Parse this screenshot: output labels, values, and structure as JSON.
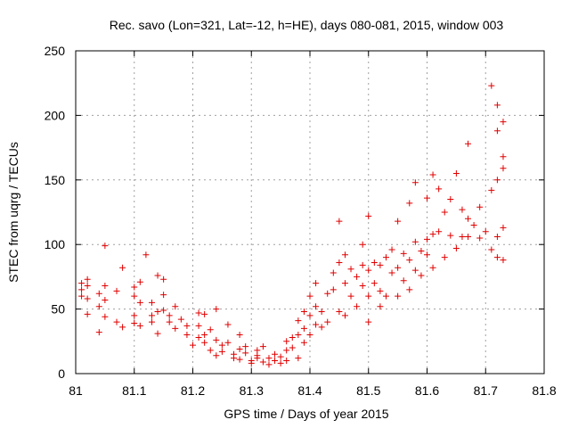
{
  "chart_data": {
    "type": "scatter",
    "title": "Rec. savo (Lon=321, Lat=-12, h=HE), days 080-081, 2015, window 003",
    "xlabel": "GPS time / Days of year 2015",
    "ylabel": "STEC from uqrg / TECUs",
    "xlim": [
      81,
      81.8
    ],
    "ylim": [
      0,
      250
    ],
    "xticks": [
      81,
      81.1,
      81.2,
      81.3,
      81.4,
      81.5,
      81.6,
      81.7,
      81.8
    ],
    "yticks": [
      0,
      50,
      100,
      150,
      200,
      250
    ],
    "xtick_labels": [
      "81",
      "81.1",
      "81.2",
      "81.3",
      "81.4",
      "81.5",
      "81.6",
      "81.7",
      "81.8"
    ],
    "ytick_labels": [
      "0",
      "50",
      "100",
      "150",
      "200",
      "250"
    ],
    "grid": true,
    "marker": "+",
    "color": "#e00000",
    "series": [
      {
        "name": "STEC",
        "points": [
          [
            81.01,
            70
          ],
          [
            81.01,
            65
          ],
          [
            81.01,
            60
          ],
          [
            81.02,
            73
          ],
          [
            81.02,
            68
          ],
          [
            81.02,
            58
          ],
          [
            81.02,
            46
          ],
          [
            81.04,
            62
          ],
          [
            81.04,
            52
          ],
          [
            81.04,
            32
          ],
          [
            81.05,
            99
          ],
          [
            81.05,
            68
          ],
          [
            81.05,
            57
          ],
          [
            81.05,
            44
          ],
          [
            81.07,
            64
          ],
          [
            81.07,
            40
          ],
          [
            81.08,
            82
          ],
          [
            81.08,
            36
          ],
          [
            81.1,
            67
          ],
          [
            81.1,
            60
          ],
          [
            81.1,
            45
          ],
          [
            81.1,
            39
          ],
          [
            81.11,
            71
          ],
          [
            81.11,
            55
          ],
          [
            81.11,
            37
          ],
          [
            81.12,
            92
          ],
          [
            81.13,
            55
          ],
          [
            81.13,
            45
          ],
          [
            81.13,
            40
          ],
          [
            81.14,
            76
          ],
          [
            81.14,
            48
          ],
          [
            81.14,
            31
          ],
          [
            81.15,
            73
          ],
          [
            81.15,
            61
          ],
          [
            81.15,
            49
          ],
          [
            81.16,
            45
          ],
          [
            81.16,
            40
          ],
          [
            81.17,
            52
          ],
          [
            81.17,
            35
          ],
          [
            81.18,
            42
          ],
          [
            81.19,
            30
          ],
          [
            81.19,
            37
          ],
          [
            81.2,
            22
          ],
          [
            81.21,
            47
          ],
          [
            81.21,
            37
          ],
          [
            81.21,
            28
          ],
          [
            81.22,
            46
          ],
          [
            81.22,
            30
          ],
          [
            81.22,
            24
          ],
          [
            81.23,
            34
          ],
          [
            81.23,
            18
          ],
          [
            81.24,
            50
          ],
          [
            81.24,
            26
          ],
          [
            81.24,
            14
          ],
          [
            81.25,
            22
          ],
          [
            81.25,
            17
          ],
          [
            81.26,
            24
          ],
          [
            81.26,
            38
          ],
          [
            81.27,
            15
          ],
          [
            81.27,
            12
          ],
          [
            81.28,
            30
          ],
          [
            81.28,
            19
          ],
          [
            81.28,
            11
          ],
          [
            81.29,
            21
          ],
          [
            81.29,
            16
          ],
          [
            81.3,
            10
          ],
          [
            81.3,
            8
          ],
          [
            81.31,
            18
          ],
          [
            81.31,
            14
          ],
          [
            81.31,
            12
          ],
          [
            81.32,
            21
          ],
          [
            81.32,
            9
          ],
          [
            81.33,
            12
          ],
          [
            81.33,
            7
          ],
          [
            81.34,
            15
          ],
          [
            81.34,
            10
          ],
          [
            81.35,
            13
          ],
          [
            81.35,
            8
          ],
          [
            81.36,
            25
          ],
          [
            81.36,
            18
          ],
          [
            81.36,
            10
          ],
          [
            81.37,
            28
          ],
          [
            81.37,
            20
          ],
          [
            81.38,
            30
          ],
          [
            81.38,
            41
          ],
          [
            81.38,
            12
          ],
          [
            81.39,
            48
          ],
          [
            81.39,
            35
          ],
          [
            81.39,
            24
          ],
          [
            81.4,
            60
          ],
          [
            81.4,
            45
          ],
          [
            81.4,
            30
          ],
          [
            81.41,
            70
          ],
          [
            81.41,
            52
          ],
          [
            81.41,
            38
          ],
          [
            81.42,
            48
          ],
          [
            81.42,
            36
          ],
          [
            81.43,
            62
          ],
          [
            81.43,
            40
          ],
          [
            81.44,
            78
          ],
          [
            81.44,
            65
          ],
          [
            81.45,
            118
          ],
          [
            81.45,
            86
          ],
          [
            81.45,
            48
          ],
          [
            81.46,
            92
          ],
          [
            81.46,
            70
          ],
          [
            81.46,
            45
          ],
          [
            81.47,
            81
          ],
          [
            81.47,
            60
          ],
          [
            81.48,
            75
          ],
          [
            81.48,
            52
          ],
          [
            81.49,
            100
          ],
          [
            81.49,
            84
          ],
          [
            81.49,
            68
          ],
          [
            81.5,
            122
          ],
          [
            81.5,
            80
          ],
          [
            81.5,
            60
          ],
          [
            81.5,
            40
          ],
          [
            81.51,
            86
          ],
          [
            81.51,
            70
          ],
          [
            81.52,
            84
          ],
          [
            81.52,
            64
          ],
          [
            81.52,
            52
          ],
          [
            81.53,
            90
          ],
          [
            81.53,
            60
          ],
          [
            81.54,
            96
          ],
          [
            81.54,
            78
          ],
          [
            81.55,
            118
          ],
          [
            81.55,
            82
          ],
          [
            81.55,
            60
          ],
          [
            81.56,
            93
          ],
          [
            81.56,
            72
          ],
          [
            81.57,
            132
          ],
          [
            81.57,
            88
          ],
          [
            81.57,
            65
          ],
          [
            81.58,
            148
          ],
          [
            81.58,
            102
          ],
          [
            81.58,
            80
          ],
          [
            81.59,
            95
          ],
          [
            81.59,
            76
          ],
          [
            81.6,
            136
          ],
          [
            81.6,
            104
          ],
          [
            81.6,
            92
          ],
          [
            81.61,
            154
          ],
          [
            81.61,
            108
          ],
          [
            81.61,
            82
          ],
          [
            81.62,
            143
          ],
          [
            81.62,
            110
          ],
          [
            81.63,
            125
          ],
          [
            81.63,
            90
          ],
          [
            81.64,
            135
          ],
          [
            81.64,
            107
          ],
          [
            81.65,
            155
          ],
          [
            81.65,
            97
          ],
          [
            81.66,
            127
          ],
          [
            81.66,
            106
          ],
          [
            81.67,
            178
          ],
          [
            81.67,
            120
          ],
          [
            81.67,
            106
          ],
          [
            81.68,
            115
          ],
          [
            81.69,
            129
          ],
          [
            81.69,
            105
          ],
          [
            81.7,
            110
          ],
          [
            81.71,
            223
          ],
          [
            81.71,
            142
          ],
          [
            81.71,
            96
          ],
          [
            81.72,
            208
          ],
          [
            81.72,
            188
          ],
          [
            81.72,
            150
          ],
          [
            81.72,
            106
          ],
          [
            81.72,
            90
          ],
          [
            81.73,
            195
          ],
          [
            81.73,
            168
          ],
          [
            81.73,
            159
          ],
          [
            81.73,
            113
          ],
          [
            81.73,
            88
          ]
        ]
      }
    ]
  }
}
